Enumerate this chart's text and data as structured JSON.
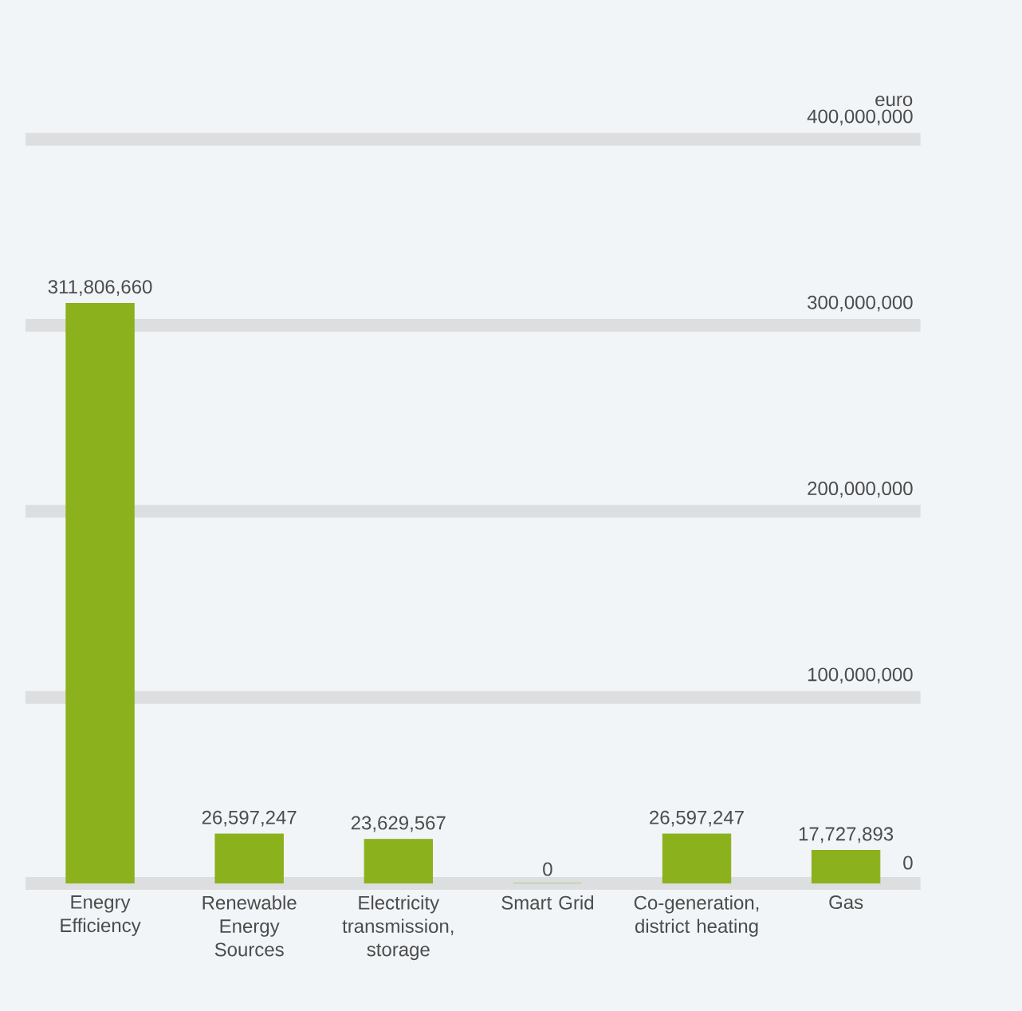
{
  "chart_data": {
    "type": "bar",
    "ylabel": "euro",
    "categories": [
      "Enegry Efficiency",
      "Renewable Energy Sources",
      "Electricity transmission, storage",
      "Smart Grid",
      "Co-generation, district heating",
      "Gas"
    ],
    "values": [
      311806660,
      26597247,
      23629567,
      0,
      26597247,
      17727893
    ],
    "value_labels": [
      "311,806,660",
      "26,597,247",
      "23,629,567",
      "0",
      "26,597,247",
      "17,727,893"
    ],
    "color": "#8bb11c",
    "ylim": [
      0,
      400000000
    ],
    "yticks": [
      {
        "value": 0,
        "label": "0"
      },
      {
        "value": 100000000,
        "label": "100,000,000"
      },
      {
        "value": 200000000,
        "label": "200,000,000"
      },
      {
        "value": 300000000,
        "label": "300,000,000"
      },
      {
        "value": 400000000,
        "label": "400,000,000"
      }
    ],
    "grid": "y"
  }
}
